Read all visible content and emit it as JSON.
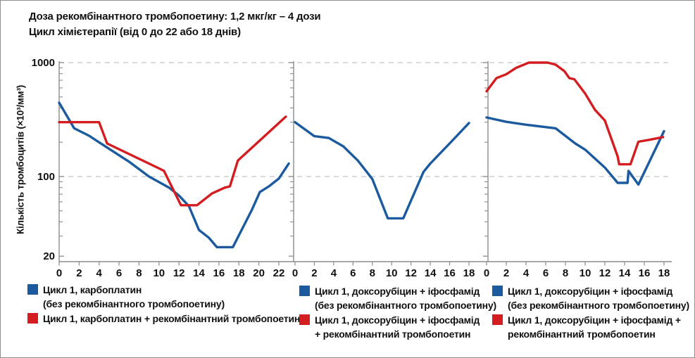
{
  "figure": {
    "title_line1": "Доза рекомбінантного тромбопоетину: 1,2 мкг/кг – 4 дози",
    "title_line2": "Цикл хімієтерапії (від 0 до 22 або 18 днів)",
    "ylabel": "Кількість тромбоцитів (×10³/мм³)"
  },
  "colors": {
    "blue": "#1b5a9e",
    "red": "#d41d20",
    "axis": "#8c8c8c",
    "grid": "#c3c3c3",
    "text": "#101010"
  },
  "chart_data": {
    "type": "line",
    "yscale": "log",
    "ylim": [
      20,
      1000
    ],
    "yticks": [
      1000,
      100,
      20
    ],
    "grid_y": [
      1000,
      100
    ],
    "grid_style": "dashed",
    "ylabel": "Кількість тромбоцитів (×10³/мм³)",
    "panels": [
      {
        "xticks": [
          0,
          2,
          4,
          6,
          8,
          10,
          12,
          14,
          16,
          18,
          20,
          22
        ],
        "xlim": [
          0,
          23.2
        ],
        "series": [
          {
            "name": "Цикл 1, карбоплатин (без рекомбінантного тромбопоетину)",
            "color": "blue",
            "x": [
              0,
              1.5,
              3,
              5,
              7,
              9,
              11,
              12,
              13,
              14,
              15,
              15.8,
              17.4,
              19.3,
              20.1,
              21,
              22,
              23
            ],
            "y": [
              445,
              265,
              228,
              175,
              135,
              100,
              80,
              68,
              55,
              34,
              29,
              24,
              24,
              51,
              73,
              82,
              96,
              130
            ]
          },
          {
            "name": "Цикл 1, карбоплатин + рекомбінантний тромбопоетин",
            "color": "red",
            "x": [
              0,
              4,
              4.8,
              10,
              10.5,
              12.2,
              13.8,
              15.3,
              16.6,
              17.1,
              17.9,
              22.7
            ],
            "y": [
              300,
              300,
              195,
              118,
              112,
              56,
              56,
              71,
              80,
              82,
              138,
              335
            ]
          }
        ]
      },
      {
        "xticks": [
          0,
          2,
          4,
          6,
          8,
          10,
          12,
          14,
          16,
          18
        ],
        "xlim": [
          0,
          18
        ],
        "series": [
          {
            "name": "Цикл 1, доксорубіцин + іфосфамід (без рекомбінантного тромбопоетину)",
            "color": "blue",
            "x": [
              0,
              2,
              3.5,
              5,
              6.5,
              8,
              9.6,
              11.2,
              13.3,
              14,
              16,
              18
            ],
            "y": [
              300,
              226,
              218,
              184,
              138,
              95,
              43,
              43,
              110,
              130,
              195,
              295
            ]
          }
        ]
      },
      {
        "xticks": [
          0,
          2,
          4,
          6,
          8,
          10,
          12,
          14,
          16,
          18
        ],
        "xlim": [
          0,
          18.2
        ],
        "series": [
          {
            "name": "Цикл 1, доксорубіцин + іфосфамід (без рекомбінантного тромбопоетину)",
            "color": "blue",
            "x": [
              0,
              2,
              4,
              7,
              9,
              10,
              12,
              13.3,
              14.3,
              14.4,
              15.4,
              18
            ],
            "y": [
              330,
              302,
              285,
              265,
              195,
              172,
              120,
              88,
              88,
              112,
              85,
              250
            ]
          },
          {
            "name": "Цикл 1, доксорубіцин + іфосфамід + рекомбінантний тромбопоетин",
            "color": "red",
            "x": [
              0,
              1,
              2,
              3,
              4.3,
              6.2,
              7,
              7.9,
              8.4,
              8.9,
              10,
              11,
              12,
              13.3,
              13.45,
              14.6,
              15.4,
              16.5,
              17.9
            ],
            "y": [
              560,
              730,
              790,
              900,
              1000,
              1000,
              960,
              840,
              730,
              715,
              535,
              385,
              310,
              150,
              128,
              128,
              202,
              210,
              222
            ]
          }
        ]
      }
    ]
  },
  "legends": [
    {
      "entries": [
        {
          "color": "blue",
          "lines": [
            "Цикл 1, карбоплатин",
            "(без рекомбінантного тромбопоетину)"
          ]
        },
        {
          "color": "red",
          "lines": [
            "Цикл 1, карбоплатин + рекомбінантний тромбопоетин"
          ]
        }
      ]
    },
    {
      "entries": [
        {
          "color": "blue",
          "lines": [
            "Цикл 1, доксорубіцин + іфосфамід",
            "(без рекомбінантного тромбопоетину)"
          ]
        },
        {
          "color": "red",
          "lines": [
            "Цикл 1, доксорубіцин + іфосфамід",
            "+ рекомбінантний тромбопоетин"
          ]
        }
      ]
    },
    {
      "entries": [
        {
          "color": "blue",
          "lines": [
            "Цикл 1, доксорубіцин + іфосфамід",
            "(без рекомбінантного тромбопоетину)"
          ]
        },
        {
          "color": "red",
          "lines": [
            "Цикл 1, доксорубіцин + іфосфамід +",
            "рекомбінантний тромбопоетин"
          ]
        }
      ]
    }
  ]
}
